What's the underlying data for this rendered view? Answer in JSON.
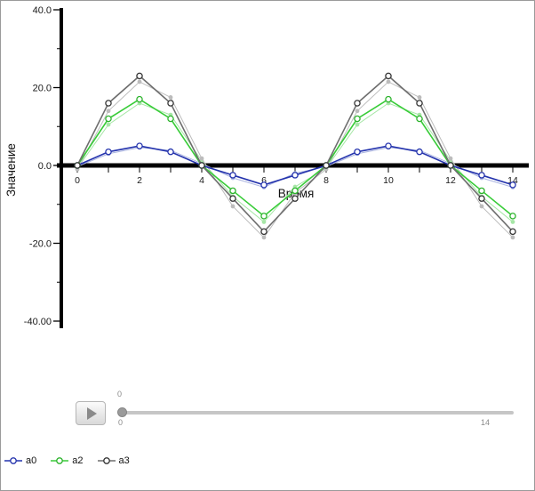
{
  "chart_data": {
    "type": "line",
    "title": "",
    "xlabel": "Время",
    "ylabel": "Значение",
    "xlim": [
      -0.5,
      14.5
    ],
    "ylim": [
      -40,
      40
    ],
    "grid": false,
    "legend_position": "bottom-left",
    "x": [
      0,
      1,
      2,
      3,
      4,
      5,
      6,
      7,
      8,
      9,
      10,
      11,
      12,
      13,
      14
    ],
    "xtick_values": [
      0,
      2,
      4,
      6,
      8,
      10,
      12,
      14
    ],
    "xtick_labels": [
      "0",
      "2",
      "4",
      "6",
      "8",
      "10",
      "12",
      "14"
    ],
    "ytick_values": [
      40,
      20,
      0,
      -20,
      -40
    ],
    "ytick_labels": [
      "40.0",
      "20.0",
      "0.0",
      "-20.0",
      "-40.00"
    ],
    "series": [
      {
        "name": "a0",
        "color": "#2433ad",
        "marker_color": "#2433ad",
        "values": [
          0,
          3.5,
          5,
          3.5,
          0,
          -2.5,
          -5,
          -2.5,
          0,
          3.5,
          5,
          3.5,
          0,
          -2.5,
          -5
        ]
      },
      {
        "name": "a2",
        "color": "#38cc38",
        "marker_color": "#2bb32b",
        "values": [
          0,
          12,
          17,
          12,
          0,
          -6.5,
          -13,
          -6.5,
          0,
          12,
          17,
          12,
          0,
          -6.5,
          -13
        ]
      },
      {
        "name": "a3",
        "color": "#6e6e6e",
        "marker_color": "#333333",
        "values": [
          0,
          16,
          23,
          16,
          0,
          -8.5,
          -17,
          -8.5,
          0,
          16,
          23,
          16,
          0,
          -8.5,
          -17
        ]
      }
    ],
    "ghost_series": [
      {
        "name": "a0-trail",
        "color": "#aab4e0",
        "values": [
          -0.3,
          3,
          4.6,
          3.9,
          0.5,
          -3.2,
          -5.6,
          -2,
          -0.3,
          3,
          4.6,
          3.9,
          0.5,
          -3.2,
          -5.6
        ]
      },
      {
        "name": "a2-trail",
        "color": "#a6e6a6",
        "values": [
          -0.7,
          10.5,
          16,
          13,
          1.2,
          -8,
          -14.5,
          -5.5,
          -0.7,
          10.5,
          16,
          13,
          1.2,
          -8,
          -14.5
        ]
      },
      {
        "name": "a3-trail",
        "color": "#bcbcbc",
        "values": [
          -1,
          14,
          21.5,
          17.5,
          1.8,
          -10.5,
          -18.5,
          -7,
          -1,
          14,
          21.5,
          17.5,
          1.8,
          -10.5,
          -18.5
        ]
      }
    ]
  },
  "controls": {
    "slider": {
      "value_label": "0",
      "min_label": "0",
      "max_label": "14"
    }
  },
  "colors": {
    "axis": "#000000",
    "slider_track": "#c6c6c6",
    "slider_thumb": "#9a9a9a"
  }
}
